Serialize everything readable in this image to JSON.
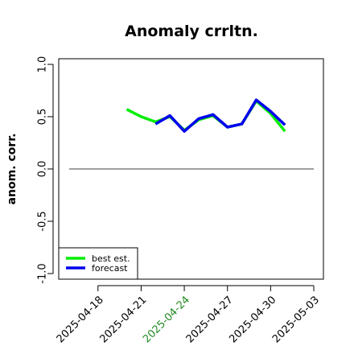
{
  "chart_data": {
    "type": "line",
    "title": "Anomaly crrltn.",
    "ylabel": "anom. corr.",
    "xlabel": "",
    "ylim": [
      -1.0,
      1.0
    ],
    "yticks": [
      "-1.0",
      "-0.5",
      "0.0",
      "0.5",
      "1.0"
    ],
    "yticks_values": [
      -1.0,
      -0.5,
      0.0,
      0.5,
      1.0
    ],
    "x_dates": [
      "2025-04-16",
      "2025-04-17",
      "2025-04-18",
      "2025-04-19",
      "2025-04-20",
      "2025-04-21",
      "2025-04-22",
      "2025-04-23",
      "2025-04-24",
      "2025-04-25",
      "2025-04-26",
      "2025-04-27",
      "2025-04-28",
      "2025-04-29",
      "2025-04-30",
      "2025-05-01",
      "2025-05-02",
      "2025-05-03"
    ],
    "xticks": [
      {
        "label": "2025-04-18",
        "color": "#000000"
      },
      {
        "label": "2025-04-21",
        "color": "#000000"
      },
      {
        "label": "2025-04-24",
        "color": "#228B22"
      },
      {
        "label": "2025-04-27",
        "color": "#000000"
      },
      {
        "label": "2025-04-30",
        "color": "#000000"
      },
      {
        "label": "2025-05-03",
        "color": "#000000"
      }
    ],
    "reference_line": 0.0,
    "series": [
      {
        "name": "best est.",
        "color": "#00ee00",
        "points": [
          [
            "2025-04-20",
            0.57
          ],
          [
            "2025-04-21",
            0.5
          ],
          [
            "2025-04-22",
            0.45
          ],
          [
            "2025-04-23",
            0.5
          ],
          [
            "2025-04-24",
            0.37
          ],
          [
            "2025-04-25",
            0.47
          ],
          [
            "2025-04-26",
            0.51
          ],
          [
            "2025-04-27",
            0.4
          ],
          [
            "2025-04-28",
            0.43
          ],
          [
            "2025-04-29",
            0.65
          ],
          [
            "2025-04-30",
            0.53
          ],
          [
            "2025-05-01",
            0.36
          ]
        ]
      },
      {
        "name": "forecast",
        "color": "#0000ee",
        "points": [
          [
            "2025-04-22",
            0.43
          ],
          [
            "2025-04-23",
            0.51
          ],
          [
            "2025-04-24",
            0.36
          ],
          [
            "2025-04-25",
            0.48
          ],
          [
            "2025-04-26",
            0.52
          ],
          [
            "2025-04-27",
            0.4
          ],
          [
            "2025-04-28",
            0.43
          ],
          [
            "2025-04-29",
            0.66
          ],
          [
            "2025-04-30",
            0.55
          ],
          [
            "2025-05-01",
            0.42
          ]
        ]
      }
    ],
    "legend": {
      "position": "bottom-left",
      "entries": [
        "best est.",
        "forecast"
      ]
    },
    "grid": false
  }
}
